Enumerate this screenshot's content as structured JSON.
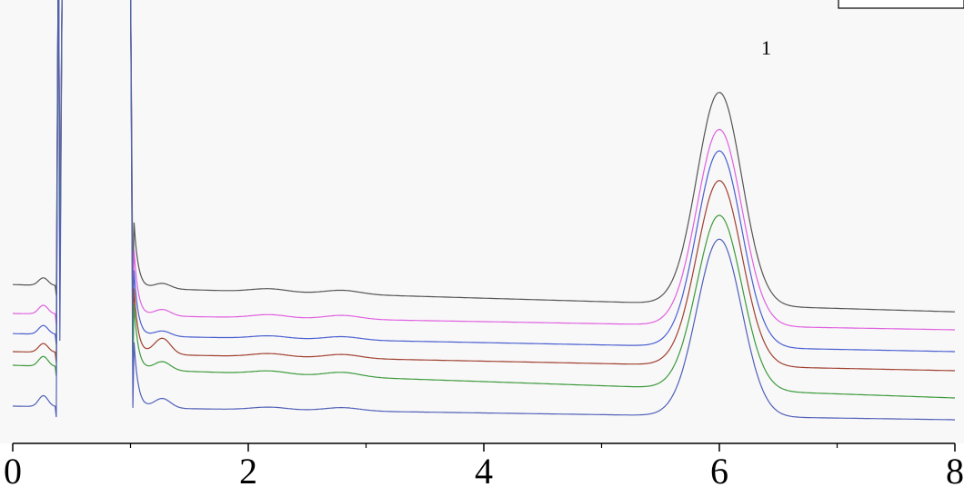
{
  "chart_data": {
    "type": "line",
    "title": "",
    "xlabel": "",
    "ylabel": "",
    "xlim": [
      0,
      8
    ],
    "x_ticks": [
      "0",
      "2",
      "4",
      "6",
      "8"
    ],
    "x_minor_ticks": [
      1,
      3,
      5,
      7
    ],
    "grid": false,
    "legend": "none",
    "peak_annotation": {
      "text": "1",
      "x": 6.0
    },
    "series": [
      {
        "color": "#555555",
        "baseline": 1.78,
        "base_end": 1.28,
        "early_hump": 0.14,
        "shoulder": 0.1,
        "bump1": 0.06,
        "bump2": 0.07,
        "peak_x": 6.0,
        "peak_height": 3.9,
        "peak_sigma": 0.19
      },
      {
        "color": "#e060e0",
        "baseline": 1.25,
        "base_end": 0.95,
        "early_hump": 0.16,
        "shoulder": 0.12,
        "bump1": 0.06,
        "bump2": 0.07,
        "peak_x": 6.0,
        "peak_height": 3.6,
        "peak_sigma": 0.19
      },
      {
        "color": "#4a5fd0",
        "baseline": 0.88,
        "base_end": 0.55,
        "early_hump": 0.16,
        "shoulder": 0.1,
        "bump1": 0.05,
        "bump2": 0.06,
        "peak_x": 6.0,
        "peak_height": 3.6,
        "peak_sigma": 0.19
      },
      {
        "color": "#a04030",
        "baseline": 0.55,
        "base_end": 0.2,
        "early_hump": 0.16,
        "shoulder": 0.3,
        "bump1": 0.06,
        "bump2": 0.07,
        "peak_x": 6.0,
        "peak_height": 3.4,
        "peak_sigma": 0.19
      },
      {
        "color": "#3d9a3d",
        "baseline": 0.3,
        "base_end": -0.3,
        "early_hump": 0.18,
        "shoulder": 0.16,
        "bump1": 0.06,
        "bump2": 0.08,
        "peak_x": 6.0,
        "peak_height": 3.2,
        "peak_sigma": 0.19
      },
      {
        "color": "#5060b8",
        "baseline": -0.45,
        "base_end": -0.7,
        "early_hump": 0.2,
        "shoulder": 0.18,
        "bump1": 0.05,
        "bump2": 0.06,
        "peak_x": 6.0,
        "peak_height": 3.25,
        "peak_sigma": 0.19
      }
    ]
  }
}
